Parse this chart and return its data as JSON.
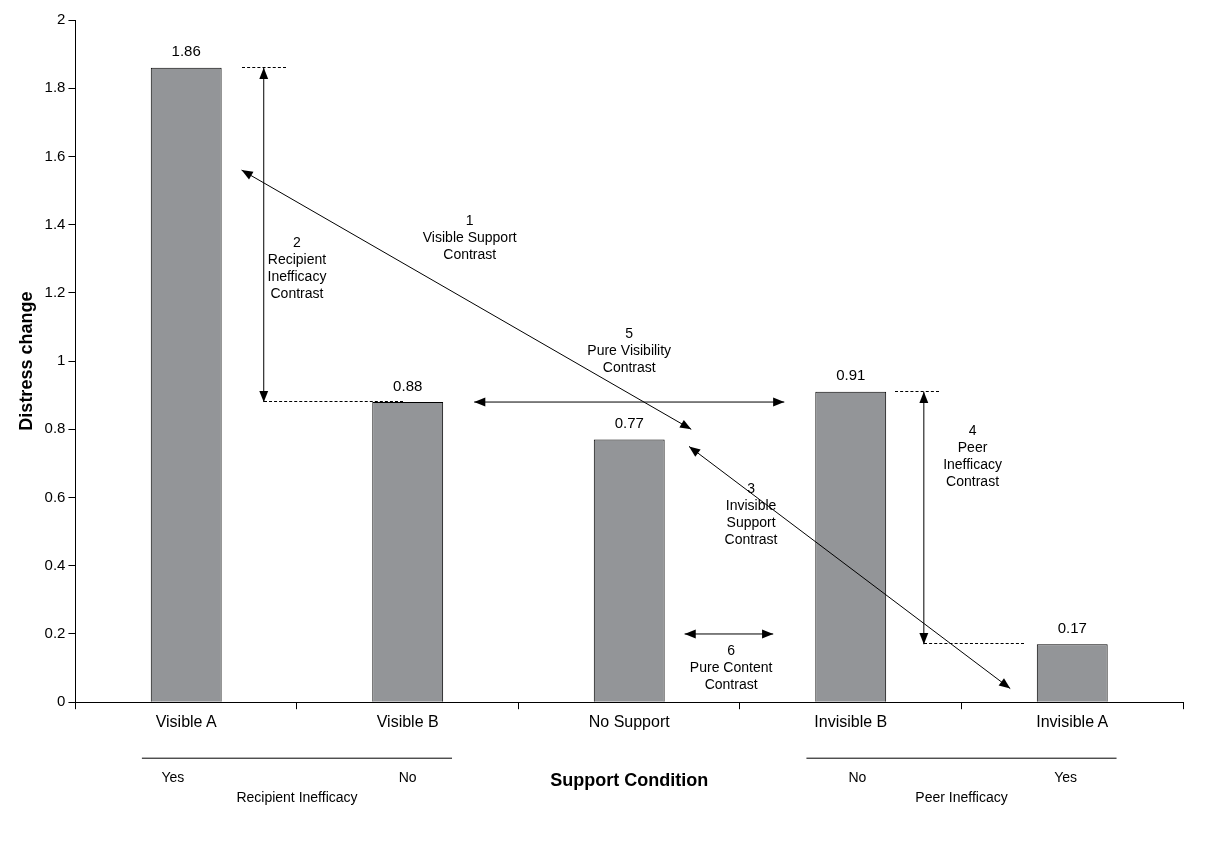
{
  "chart_data": {
    "type": "bar",
    "xlabel": "Support Condition",
    "ylabel": "Distress change",
    "categories": [
      "Visible A",
      "Visible B",
      "No Support",
      "Invisible B",
      "Invisible A"
    ],
    "values": [
      1.86,
      0.88,
      0.77,
      0.91,
      0.17
    ],
    "color": "#939598",
    "data_labels": true,
    "ylim": [
      0,
      2
    ],
    "yticks": [
      0,
      0.2,
      0.4,
      0.6,
      0.8,
      1,
      1.2,
      1.4,
      1.6,
      1.8,
      2
    ],
    "grid": false,
    "legend": false,
    "annotations": [
      "1\nVisible Support\nContrast",
      "2\nRecipient\nInefficacy\nContrast",
      "5\nPure Visibility\nContrast",
      "3\nInvisible\nSupport\nContrast",
      "4\nPeer\nInefficacy\nContrast",
      "6\nPure Content\nContrast",
      "Yes",
      "No",
      "Recipient Inefficacy",
      "No",
      "Yes",
      "Peer Inefficacy"
    ]
  }
}
